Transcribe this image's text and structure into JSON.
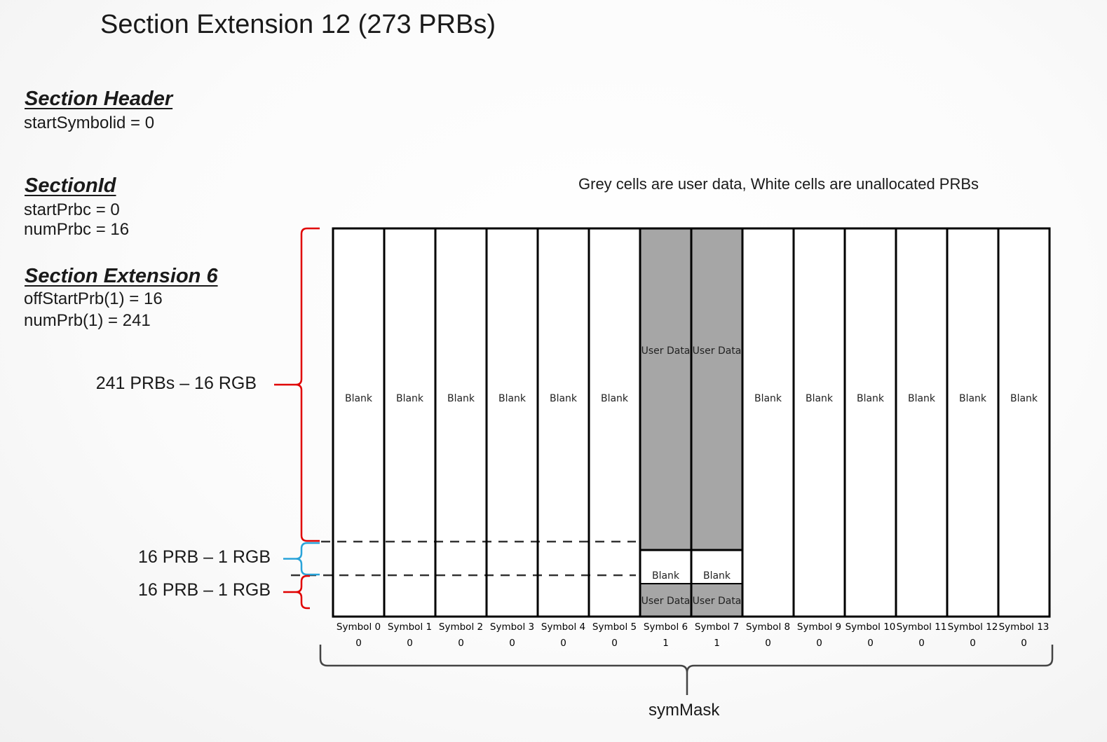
{
  "title": "Section Extension 12 (273 PRBs)",
  "section_header": {
    "heading": "Section Header",
    "lines": [
      "startSymbolid = 0"
    ]
  },
  "section_id": {
    "heading": "SectionId",
    "lines": [
      "startPrbc = 0",
      "numPrbc = 16"
    ]
  },
  "section_ext6": {
    "heading": "Section Extension 6",
    "lines": [
      "offStartPrb(1) = 16",
      "numPrb(1) = 241"
    ]
  },
  "legend_note": "Grey cells are user data, White cells are unallocated PRBs",
  "ranges": [
    {
      "label": "241 PRBs – 16 RGB",
      "color": "#e00000"
    },
    {
      "label": "16 PRB – 1 RGB",
      "color": "#29a3d9"
    },
    {
      "label": "16 PRB – 1 RGB",
      "color": "#e00000"
    }
  ],
  "cell_labels": {
    "blank": "Blank",
    "user_data": "User Data"
  },
  "colors": {
    "user_data_fill": "#a6a6a6",
    "blank_fill": "#ffffff",
    "grid_line": "#000000"
  },
  "symbols": [
    {
      "name": "Symbol 0",
      "mask": "0",
      "active": false
    },
    {
      "name": "Symbol 1",
      "mask": "0",
      "active": false
    },
    {
      "name": "Symbol 2",
      "mask": "0",
      "active": false
    },
    {
      "name": "Symbol 3",
      "mask": "0",
      "active": false
    },
    {
      "name": "Symbol 4",
      "mask": "0",
      "active": false
    },
    {
      "name": "Symbol 5",
      "mask": "0",
      "active": false
    },
    {
      "name": "Symbol 6",
      "mask": "1",
      "active": true
    },
    {
      "name": "Symbol 7",
      "mask": "1",
      "active": true
    },
    {
      "name": "Symbol 8",
      "mask": "0",
      "active": false
    },
    {
      "name": "Symbol 9",
      "mask": "0",
      "active": false
    },
    {
      "name": "Symbol 10",
      "mask": "0",
      "active": false
    },
    {
      "name": "Symbol 11",
      "mask": "0",
      "active": false
    },
    {
      "name": "Symbol 12",
      "mask": "0",
      "active": false
    },
    {
      "name": "Symbol 13",
      "mask": "0",
      "active": false
    }
  ],
  "bottom_label": "symMask"
}
